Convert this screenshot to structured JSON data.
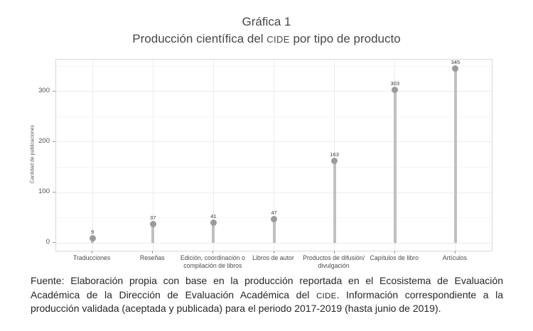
{
  "chart": {
    "title": "Gráfica 1",
    "subtitle_pre": "Producción científica del ",
    "subtitle_acronym": "CIDE",
    "subtitle_post": " por tipo de producto",
    "ylabel": "Cantidad de publicaciones"
  },
  "chart_data": {
    "type": "bar",
    "variant": "lollipop",
    "title": "Gráfica 1",
    "subtitle": "Producción científica del CIDE por tipo de producto",
    "categories": [
      "Traducciones",
      "Reseñas",
      "Edición, coordinación o\ncompilación de libros",
      "Libros de autor",
      "Productos de difusión/\ndivulgación",
      "Capítulos de libro",
      "Artículos"
    ],
    "values": [
      9,
      37,
      41,
      47,
      163,
      303,
      345
    ],
    "value_labels": [
      "9",
      "37",
      "41",
      "47",
      "163",
      "303",
      "345"
    ],
    "xlabel": "",
    "ylabel": "Cantidad de publicaciones",
    "ylim": [
      0,
      350
    ],
    "y_ticks": [
      0,
      100,
      200,
      300
    ],
    "y_minor_ticks": [
      50,
      150,
      250,
      350
    ],
    "grid": "on",
    "legend": "none",
    "point_color": "#9b9b9b",
    "stem_color": "#c0c0c0"
  },
  "footer": {
    "part1": "Fuente: Elaboración propia con base en la producción reportada en el Ecosistema de Evaluación Académica de la Dirección de Evaluación Académica del ",
    "acronym": "CIDE",
    "part2": ". Información correspondiente a la producción validada (aceptada y publicada) para el periodo 2017-2019 (hasta junio de 2019)."
  }
}
